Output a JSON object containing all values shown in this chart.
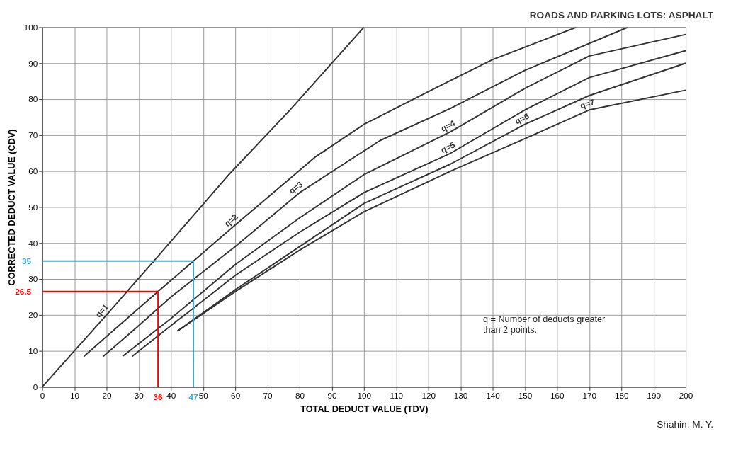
{
  "chart_data": {
    "type": "line",
    "title": "ROADS AND PARKING LOTS:  ASPHALT",
    "xlabel": "TOTAL DEDUCT VALUE (TDV)",
    "ylabel": "CORRECTED DEDUCT VALUE (CDV)",
    "xlim": [
      0,
      200
    ],
    "ylim": [
      0,
      100
    ],
    "xticks": [
      0,
      10,
      20,
      30,
      40,
      50,
      60,
      70,
      80,
      90,
      100,
      110,
      120,
      130,
      140,
      150,
      160,
      170,
      180,
      190,
      200
    ],
    "yticks": [
      0,
      10,
      20,
      30,
      40,
      50,
      60,
      70,
      80,
      90,
      100
    ],
    "grid": true,
    "series": [
      {
        "name": "q=1",
        "color": "#333333",
        "x": [
          0,
          10,
          20,
          35,
          58,
          77,
          100
        ],
        "values": [
          0,
          10,
          20,
          35.3,
          59,
          77,
          100
        ]
      },
      {
        "name": "q=2",
        "color": "#333333",
        "x": [
          13,
          20,
          36,
          47,
          60,
          85,
          100,
          122,
          140,
          166
        ],
        "values": [
          8.5,
          14,
          26.5,
          35,
          45,
          64,
          73,
          83,
          91,
          100
        ]
      },
      {
        "name": "q=3",
        "color": "#333333",
        "x": [
          19,
          30,
          40,
          60,
          80,
          105,
          127,
          150,
          182
        ],
        "values": [
          8.5,
          17,
          25,
          39,
          54,
          68.5,
          77.5,
          88,
          100
        ]
      },
      {
        "name": "q=4",
        "color": "#333333",
        "x": [
          25,
          40,
          60,
          80,
          100,
          127,
          150,
          170,
          200
        ],
        "values": [
          8.5,
          19,
          34,
          47,
          59,
          71,
          83,
          92,
          98
        ]
      },
      {
        "name": "q=5",
        "color": "#333333",
        "x": [
          28,
          40,
          60,
          80,
          100,
          127,
          150,
          170,
          200
        ],
        "values": [
          8.5,
          17,
          31,
          43,
          54,
          65,
          77,
          86,
          93.5
        ]
      },
      {
        "name": "q=6",
        "color": "#333333",
        "x": [
          42,
          60,
          80,
          100,
          127,
          150,
          170,
          200
        ],
        "values": [
          15.5,
          27,
          39,
          51,
          62,
          73,
          81,
          90
        ]
      },
      {
        "name": "q=7",
        "color": "#333333",
        "x": [
          42,
          60,
          80,
          100,
          127,
          150,
          170,
          200
        ],
        "values": [
          15.5,
          26.5,
          38,
          48.7,
          60,
          69,
          77,
          82.5
        ]
      },
      {
        "color": "#ff0000",
        "x": [
          0,
          36,
          36
        ],
        "values": [
          26.5,
          26.5,
          0
        ],
        "value_labels": [
          "26.5",
          null,
          null
        ]
      },
      {
        "color": "#3fa9d8",
        "x": [
          0,
          47,
          47
        ],
        "values": [
          35,
          35,
          0
        ],
        "value_labels": [
          "35",
          null,
          null
        ]
      }
    ],
    "annotations": [
      "q = Number of deducts greater\nthan 2 points.",
      "Shahin, M. Y.",
      {
        "text": "36",
        "x": 36,
        "y": 0
      },
      {
        "text": "47",
        "x": 47,
        "y": 0
      }
    ]
  }
}
